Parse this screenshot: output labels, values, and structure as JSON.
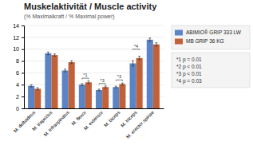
{
  "chart_data": {
    "type": "bar",
    "title": "Muskelaktivität / Muscle activity",
    "subtitle": "(% Maximalkraft / % Maximal power)",
    "categories": [
      "M. deltoideus",
      "M. trapezius",
      "M. infraspinatus",
      "M. flexor",
      "M. extensor",
      "M. biceps",
      "M. triceps",
      "M. erector spinae"
    ],
    "series": [
      {
        "name": "ABIMIO® GRIP 333 LW",
        "color": "#5B84C4",
        "values": [
          3.8,
          9.3,
          6.4,
          4.0,
          3.1,
          3.6,
          7.6,
          11.6
        ],
        "errors": [
          0.18,
          0.22,
          0.22,
          0.18,
          0.15,
          0.15,
          0.45,
          0.28
        ]
      },
      {
        "name": "MB GRIP 36 KG",
        "color": "#C0613A",
        "values": [
          3.3,
          9.0,
          7.8,
          4.4,
          3.6,
          4.1,
          8.5,
          10.8
        ],
        "errors": [
          0.18,
          0.18,
          0.22,
          0.22,
          0.18,
          0.18,
          0.28,
          0.28
        ]
      }
    ],
    "ylim": [
      0,
      14
    ],
    "yticks": [
      0,
      2,
      4,
      6,
      8,
      10,
      12,
      14
    ],
    "grid": true,
    "legend": "right",
    "annotations": [
      {
        "category": "M. flexor",
        "label": "*1",
        "y_bracket": 5.1,
        "y_text": 5.35
      },
      {
        "category": "M. extensor",
        "label": "*3",
        "y_bracket": 4.2,
        "y_text": 4.45
      },
      {
        "category": "M. biceps",
        "label": "*3",
        "y_bracket": 4.8,
        "y_text": 5.05
      },
      {
        "category": "M. triceps",
        "label": "*4",
        "y_bracket": 10.0,
        "y_text": 10.25
      }
    ],
    "footnotes": [
      "*1 p = 0.01",
      "*2 p < 0.01",
      "*3 p < 0.01",
      "*4 p = 0.03"
    ]
  }
}
